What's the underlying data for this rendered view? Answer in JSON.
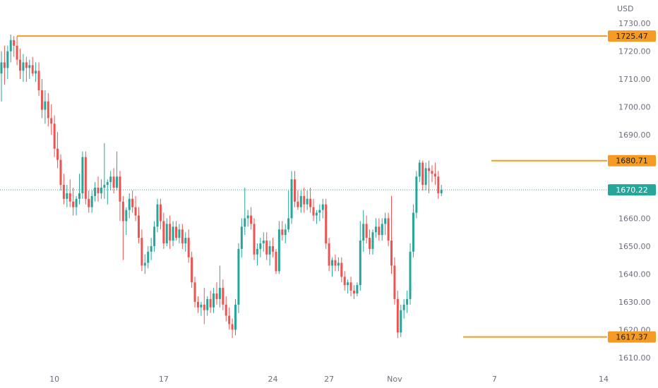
{
  "chart_data": {
    "type": "candlestick",
    "currency": "USD",
    "ylim": [
      1605,
      1735
    ],
    "y_ticks": [
      "1610.00",
      "1620.00",
      "1630.00",
      "1640.00",
      "1650.00",
      "1660.00",
      "1670.00",
      "1680.00",
      "1690.00",
      "1700.00",
      "1710.00",
      "1720.00",
      "1730.00"
    ],
    "x_ticks": [
      {
        "label": "10",
        "index": 17
      },
      {
        "label": "17",
        "index": 52
      },
      {
        "label": "24",
        "index": 87
      },
      {
        "label": "27",
        "index": 105
      },
      {
        "label": "Nov",
        "index": 126
      },
      {
        "label": "7",
        "index": 158
      },
      {
        "label": "14",
        "index": 193
      }
    ],
    "levels": [
      {
        "value": 1725.47,
        "label": "1725.47",
        "from_index": 5
      },
      {
        "value": 1680.71,
        "label": "1680.71",
        "from_index": 157
      },
      {
        "value": 1617.37,
        "label": "1617.37",
        "from_index": 148
      }
    ],
    "last_price": {
      "value": 1670.22,
      "label": "1670.22"
    },
    "candles": [
      [
        1712.0,
        1720.0,
        1702.0,
        1716.0
      ],
      [
        1716.0,
        1722.0,
        1708.0,
        1714.0
      ],
      [
        1714.0,
        1722.0,
        1710.0,
        1720.0
      ],
      [
        1720.0,
        1726.0,
        1716.0,
        1724.0
      ],
      [
        1724.0,
        1725.5,
        1718.0,
        1722.0
      ],
      [
        1722.0,
        1725.47,
        1715.0,
        1717.0
      ],
      [
        1717.0,
        1721.0,
        1710.0,
        1713.0
      ],
      [
        1713.0,
        1719.0,
        1709.0,
        1716.0
      ],
      [
        1716.0,
        1718.0,
        1709.0,
        1714.0
      ],
      [
        1714.0,
        1717.0,
        1710.0,
        1715.0
      ],
      [
        1715.0,
        1718.0,
        1711.0,
        1712.0
      ],
      [
        1712.0,
        1716.0,
        1709.0,
        1713.0
      ],
      [
        1713.0,
        1716.0,
        1704.0,
        1706.0
      ],
      [
        1706.0,
        1710.0,
        1696.0,
        1699.0
      ],
      [
        1699.0,
        1706.0,
        1694.0,
        1702.0
      ],
      [
        1702.0,
        1705.0,
        1693.0,
        1696.0
      ],
      [
        1696.0,
        1701.0,
        1690.0,
        1694.0
      ],
      [
        1694.0,
        1697.0,
        1682.0,
        1685.0
      ],
      [
        1685.0,
        1691.0,
        1678.0,
        1681.0
      ],
      [
        1681.0,
        1683.0,
        1670.0,
        1672.0
      ],
      [
        1672.0,
        1676.0,
        1665.0,
        1667.0
      ],
      [
        1667.0,
        1672.0,
        1664.0,
        1669.0
      ],
      [
        1669.0,
        1674.0,
        1664.0,
        1666.0
      ],
      [
        1666.0,
        1671.0,
        1661.0,
        1664.0
      ],
      [
        1664.0,
        1668.0,
        1661.0,
        1667.0
      ],
      [
        1667.0,
        1676.0,
        1665.0,
        1669.0
      ],
      [
        1669.0,
        1684.0,
        1667.0,
        1682.0
      ],
      [
        1682.0,
        1684.0,
        1665.0,
        1667.0
      ],
      [
        1667.0,
        1670.0,
        1662.0,
        1664.0
      ],
      [
        1664.0,
        1670.0,
        1662.0,
        1668.0
      ],
      [
        1668.0,
        1673.0,
        1666.0,
        1671.0
      ],
      [
        1671.0,
        1675.0,
        1666.0,
        1669.0
      ],
      [
        1669.0,
        1674.0,
        1667.0,
        1671.0
      ],
      [
        1671.0,
        1687.0,
        1667.0,
        1672.0
      ],
      [
        1672.0,
        1674.0,
        1665.0,
        1673.0
      ],
      [
        1673.0,
        1677.0,
        1670.0,
        1675.0
      ],
      [
        1675.0,
        1678.0,
        1669.0,
        1671.0
      ],
      [
        1671.0,
        1684.0,
        1670.0,
        1675.0
      ],
      [
        1675.0,
        1677.0,
        1659.0,
        1666.0
      ],
      [
        1666.0,
        1668.0,
        1645.0,
        1659.0
      ],
      [
        1659.0,
        1664.0,
        1654.0,
        1663.0
      ],
      [
        1663.0,
        1669.0,
        1660.0,
        1667.0
      ],
      [
        1667.0,
        1670.0,
        1662.0,
        1664.0
      ],
      [
        1664.0,
        1668.0,
        1659.0,
        1661.0
      ],
      [
        1661.0,
        1664.0,
        1651.0,
        1653.0
      ],
      [
        1653.0,
        1656.0,
        1641.0,
        1643.0
      ],
      [
        1643.0,
        1647.0,
        1640.0,
        1644.0
      ],
      [
        1644.0,
        1650.0,
        1642.0,
        1648.0
      ],
      [
        1648.0,
        1653.0,
        1645.0,
        1650.0
      ],
      [
        1650.0,
        1659.0,
        1648.0,
        1657.0
      ],
      [
        1657.0,
        1667.0,
        1655.0,
        1665.0
      ],
      [
        1665.0,
        1667.0,
        1656.0,
        1659.0
      ],
      [
        1659.0,
        1662.0,
        1649.0,
        1651.0
      ],
      [
        1651.0,
        1660.0,
        1650.0,
        1658.0
      ],
      [
        1658.0,
        1661.0,
        1649.0,
        1652.0
      ],
      [
        1652.0,
        1659.0,
        1650.0,
        1657.0
      ],
      [
        1657.0,
        1659.0,
        1652.0,
        1653.0
      ],
      [
        1653.0,
        1658.0,
        1651.0,
        1656.0
      ],
      [
        1656.0,
        1658.0,
        1649.0,
        1651.0
      ],
      [
        1651.0,
        1655.0,
        1648.0,
        1653.0
      ],
      [
        1653.0,
        1656.0,
        1644.0,
        1646.0
      ],
      [
        1646.0,
        1648.0,
        1635.0,
        1637.0
      ],
      [
        1637.0,
        1639.0,
        1628.0,
        1630.0
      ],
      [
        1630.0,
        1632.0,
        1626.0,
        1628.0
      ],
      [
        1628.0,
        1630.0,
        1625.0,
        1629.0
      ],
      [
        1629.0,
        1635.0,
        1622.0,
        1627.0
      ],
      [
        1627.0,
        1632.0,
        1625.0,
        1631.0
      ],
      [
        1631.0,
        1634.0,
        1626.0,
        1628.0
      ],
      [
        1628.0,
        1635.0,
        1626.0,
        1633.0
      ],
      [
        1633.0,
        1637.0,
        1629.0,
        1631.0
      ],
      [
        1631.0,
        1643.0,
        1628.0,
        1635.0
      ],
      [
        1635.0,
        1638.0,
        1627.0,
        1629.0
      ],
      [
        1629.0,
        1632.0,
        1623.0,
        1625.0
      ],
      [
        1625.0,
        1628.0,
        1620.0,
        1622.0
      ],
      [
        1622.0,
        1624.0,
        1617.0,
        1620.0
      ],
      [
        1620.0,
        1631.0,
        1618.0,
        1629.0
      ],
      [
        1629.0,
        1651.0,
        1626.0,
        1649.0
      ],
      [
        1649.0,
        1660.0,
        1646.0,
        1657.0
      ],
      [
        1657.0,
        1671.0,
        1654.0,
        1660.0
      ],
      [
        1660.0,
        1663.0,
        1657.0,
        1661.0
      ],
      [
        1661.0,
        1664.0,
        1656.0,
        1658.0
      ],
      [
        1658.0,
        1660.0,
        1645.0,
        1647.0
      ],
      [
        1647.0,
        1651.0,
        1643.0,
        1649.0
      ],
      [
        1649.0,
        1653.0,
        1646.0,
        1651.0
      ],
      [
        1651.0,
        1655.0,
        1648.0,
        1652.0
      ],
      [
        1652.0,
        1655.0,
        1645.0,
        1647.0
      ],
      [
        1647.0,
        1652.0,
        1643.0,
        1650.0
      ],
      [
        1650.0,
        1653.0,
        1646.0,
        1648.0
      ],
      [
        1648.0,
        1649.0,
        1640.0,
        1641.0
      ],
      [
        1641.0,
        1659.0,
        1640.0,
        1656.0
      ],
      [
        1656.0,
        1659.0,
        1652.0,
        1654.0
      ],
      [
        1654.0,
        1658.0,
        1651.0,
        1656.0
      ],
      [
        1656.0,
        1670.0,
        1655.0,
        1660.0
      ],
      [
        1660.0,
        1677.0,
        1658.0,
        1674.0
      ],
      [
        1674.0,
        1677.0,
        1664.0,
        1666.0
      ],
      [
        1666.0,
        1670.0,
        1663.0,
        1664.0
      ],
      [
        1664.0,
        1670.0,
        1662.0,
        1668.0
      ],
      [
        1668.0,
        1671.0,
        1662.0,
        1665.0
      ],
      [
        1665.0,
        1670.0,
        1663.0,
        1667.0
      ],
      [
        1667.0,
        1671.0,
        1662.0,
        1664.0
      ],
      [
        1664.0,
        1667.0,
        1659.0,
        1661.0
      ],
      [
        1661.0,
        1663.0,
        1658.0,
        1662.0
      ],
      [
        1662.0,
        1665.0,
        1659.0,
        1663.0
      ],
      [
        1663.0,
        1667.0,
        1660.0,
        1665.0
      ],
      [
        1665.0,
        1667.0,
        1649.0,
        1651.0
      ],
      [
        1651.0,
        1653.0,
        1641.0,
        1643.0
      ],
      [
        1643.0,
        1646.0,
        1639.0,
        1645.0
      ],
      [
        1645.0,
        1647.0,
        1641.0,
        1643.0
      ],
      [
        1643.0,
        1646.0,
        1641.0,
        1644.0
      ],
      [
        1644.0,
        1646.0,
        1637.0,
        1639.0
      ],
      [
        1639.0,
        1641.0,
        1634.0,
        1636.0
      ],
      [
        1636.0,
        1638.0,
        1633.0,
        1637.0
      ],
      [
        1637.0,
        1639.0,
        1632.0,
        1634.0
      ],
      [
        1634.0,
        1636.0,
        1631.0,
        1633.0
      ],
      [
        1633.0,
        1637.0,
        1632.0,
        1636.0
      ],
      [
        1636.0,
        1659.0,
        1634.0,
        1652.0
      ],
      [
        1652.0,
        1663.0,
        1648.0,
        1658.0
      ],
      [
        1658.0,
        1661.0,
        1651.0,
        1653.0
      ],
      [
        1653.0,
        1656.0,
        1647.0,
        1649.0
      ],
      [
        1649.0,
        1656.0,
        1647.0,
        1655.0
      ],
      [
        1655.0,
        1660.0,
        1653.0,
        1657.0
      ],
      [
        1657.0,
        1660.0,
        1652.0,
        1654.0
      ],
      [
        1654.0,
        1660.0,
        1652.0,
        1658.0
      ],
      [
        1658.0,
        1662.0,
        1654.0,
        1660.0
      ],
      [
        1660.0,
        1662.0,
        1650.0,
        1652.0
      ],
      [
        1652.0,
        1668.0,
        1640.0,
        1643.0
      ],
      [
        1643.0,
        1646.0,
        1629.0,
        1631.0
      ],
      [
        1631.0,
        1634.0,
        1617.0,
        1619.0
      ],
      [
        1619.0,
        1629.0,
        1617.37,
        1627.0
      ],
      [
        1627.0,
        1631.0,
        1624.0,
        1629.0
      ],
      [
        1629.0,
        1634.0,
        1626.0,
        1631.0
      ],
      [
        1631.0,
        1651.0,
        1629.0,
        1648.0
      ],
      [
        1648.0,
        1665.0,
        1646.0,
        1662.0
      ],
      [
        1662.0,
        1677.0,
        1660.0,
        1675.0
      ],
      [
        1675.0,
        1681.0,
        1673.0,
        1680.0
      ],
      [
        1680.0,
        1680.71,
        1670.0,
        1672.0
      ],
      [
        1672.0,
        1680.0,
        1670.0,
        1678.0
      ],
      [
        1678.0,
        1680.71,
        1669.0,
        1677.0
      ],
      [
        1677.0,
        1679.0,
        1673.0,
        1676.0
      ],
      [
        1676.0,
        1680.0,
        1672.0,
        1675.0
      ],
      [
        1675.0,
        1677.0,
        1667.0,
        1669.0
      ],
      [
        1669.0,
        1672.0,
        1668.0,
        1670.22
      ]
    ]
  }
}
